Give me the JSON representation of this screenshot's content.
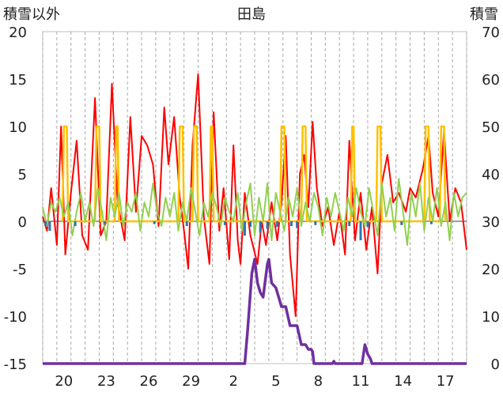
{
  "chart_data": {
    "type": "line",
    "title": "田島",
    "left_axis_label": "積雪以外",
    "right_axis_label": "積雪",
    "left_ylim": [
      -15,
      20
    ],
    "left_yticks": [
      -15,
      -10,
      -5,
      0,
      5,
      10,
      15,
      20
    ],
    "right_ylim": [
      0,
      70
    ],
    "right_yticks": [
      0,
      10,
      20,
      30,
      40,
      50,
      60,
      70
    ],
    "x_range_days": [
      0,
      30
    ],
    "x_tick_labels": [
      {
        "day": 1,
        "label": "20"
      },
      {
        "day": 4,
        "label": "23"
      },
      {
        "day": 7,
        "label": "26"
      },
      {
        "day": 10,
        "label": "29"
      },
      {
        "day": 13,
        "label": "2"
      },
      {
        "day": 16,
        "label": "5"
      },
      {
        "day": 19,
        "label": "8"
      },
      {
        "day": 22,
        "label": "11"
      },
      {
        "day": 25,
        "label": "14"
      },
      {
        "day": 28,
        "label": "17"
      }
    ],
    "grid": "vertical dashed daily lines",
    "colors": {
      "temperature": "#ff0000",
      "sunshine": "#ffc000",
      "wind": "#92d050",
      "precipitation": "#2e75b6",
      "snow_depth": "#7030a0",
      "zero_line": "#7f7f7f",
      "grid": "#aaaaaa"
    },
    "series": [
      {
        "key": "temperature",
        "color": "#ff0000",
        "points": [
          [
            0.0,
            0.5
          ],
          [
            0.3,
            -1.0
          ],
          [
            0.6,
            3.5
          ],
          [
            1.0,
            -2.5
          ],
          [
            1.3,
            10.0
          ],
          [
            1.6,
            -3.5
          ],
          [
            2.0,
            3.0
          ],
          [
            2.4,
            8.5
          ],
          [
            2.8,
            -1.5
          ],
          [
            3.2,
            -3.0
          ],
          [
            3.7,
            13.0
          ],
          [
            4.1,
            -1.5
          ],
          [
            4.5,
            0.0
          ],
          [
            4.9,
            14.5
          ],
          [
            5.3,
            2.0
          ],
          [
            5.8,
            -2.0
          ],
          [
            6.2,
            11.0
          ],
          [
            6.6,
            1.0
          ],
          [
            7.0,
            9.0
          ],
          [
            7.4,
            8.0
          ],
          [
            7.8,
            6.0
          ],
          [
            8.2,
            -0.5
          ],
          [
            8.6,
            12.0
          ],
          [
            8.9,
            6.0
          ],
          [
            9.3,
            11.0
          ],
          [
            9.7,
            2.5
          ],
          [
            10.0,
            -1.0
          ],
          [
            10.3,
            -5.0
          ],
          [
            10.6,
            8.0
          ],
          [
            11.0,
            15.5
          ],
          [
            11.4,
            0.5
          ],
          [
            11.8,
            -4.5
          ],
          [
            12.1,
            11.5
          ],
          [
            12.5,
            -1.0
          ],
          [
            12.8,
            3.5
          ],
          [
            13.2,
            -4.0
          ],
          [
            13.5,
            8.0
          ],
          [
            13.8,
            -2.0
          ],
          [
            14.0,
            -4.5
          ],
          [
            14.3,
            3.0
          ],
          [
            14.7,
            -1.5
          ],
          [
            15.2,
            -4.5
          ],
          [
            15.5,
            0.0
          ],
          [
            15.8,
            -2.5
          ],
          [
            16.2,
            2.0
          ],
          [
            16.6,
            -2.0
          ],
          [
            16.9,
            2.0
          ],
          [
            17.2,
            9.0
          ],
          [
            17.5,
            -3.5
          ],
          [
            17.9,
            -10.0
          ],
          [
            18.2,
            5.0
          ],
          [
            18.5,
            7.0
          ],
          [
            18.8,
            1.5
          ],
          [
            19.1,
            10.5
          ],
          [
            19.4,
            3.5
          ],
          [
            19.8,
            -0.5
          ],
          [
            20.2,
            1.5
          ],
          [
            20.6,
            -2.5
          ],
          [
            21.0,
            1.0
          ],
          [
            21.4,
            -3.5
          ],
          [
            21.7,
            8.5
          ],
          [
            22.1,
            -2.0
          ],
          [
            22.5,
            3.0
          ],
          [
            22.9,
            -3.0
          ],
          [
            23.3,
            1.5
          ],
          [
            23.7,
            -5.5
          ],
          [
            24.0,
            4.0
          ],
          [
            24.4,
            7.0
          ],
          [
            24.8,
            2.0
          ],
          [
            25.2,
            3.0
          ],
          [
            25.7,
            1.0
          ],
          [
            26.0,
            3.5
          ],
          [
            26.4,
            2.5
          ],
          [
            26.9,
            5.5
          ],
          [
            27.3,
            9.0
          ],
          [
            27.6,
            3.0
          ],
          [
            28.0,
            0.5
          ],
          [
            28.4,
            9.5
          ],
          [
            28.8,
            0.0
          ],
          [
            29.2,
            3.5
          ],
          [
            29.6,
            2.0
          ],
          [
            30.0,
            -3.0
          ]
        ]
      },
      {
        "key": "sunshine",
        "color": "#ffc000",
        "points": [
          [
            1.4,
            0
          ],
          [
            1.5,
            10
          ],
          [
            1.7,
            10
          ],
          [
            1.8,
            0
          ],
          [
            3.7,
            0
          ],
          [
            3.8,
            10
          ],
          [
            4.0,
            10
          ],
          [
            4.1,
            0
          ],
          [
            5.1,
            0
          ],
          [
            5.2,
            10
          ],
          [
            5.3,
            10
          ],
          [
            5.4,
            0
          ],
          [
            9.6,
            0
          ],
          [
            9.7,
            10
          ],
          [
            9.9,
            10
          ],
          [
            10.0,
            0
          ],
          [
            10.6,
            0
          ],
          [
            10.7,
            10
          ],
          [
            10.9,
            10
          ],
          [
            11.0,
            0
          ],
          [
            11.8,
            0
          ],
          [
            11.9,
            10
          ],
          [
            12.0,
            10
          ],
          [
            12.1,
            0
          ],
          [
            16.8,
            0
          ],
          [
            16.9,
            10
          ],
          [
            17.1,
            10
          ],
          [
            17.2,
            0
          ],
          [
            18.3,
            0
          ],
          [
            18.4,
            10
          ],
          [
            18.6,
            10
          ],
          [
            18.7,
            0
          ],
          [
            21.8,
            0
          ],
          [
            21.9,
            10
          ],
          [
            22.0,
            10
          ],
          [
            22.1,
            0
          ],
          [
            23.6,
            0
          ],
          [
            23.7,
            10
          ],
          [
            23.9,
            10
          ],
          [
            24.0,
            0
          ],
          [
            27.0,
            0
          ],
          [
            27.1,
            10
          ],
          [
            27.3,
            10
          ],
          [
            27.4,
            0
          ],
          [
            28.1,
            0
          ],
          [
            28.2,
            10
          ],
          [
            28.4,
            10
          ],
          [
            28.5,
            0
          ]
        ]
      },
      {
        "key": "wind",
        "color": "#92d050",
        "points": [
          [
            0.0,
            1.5
          ],
          [
            0.3,
            -0.5
          ],
          [
            0.6,
            2.0
          ],
          [
            0.9,
            1.0
          ],
          [
            1.2,
            2.5
          ],
          [
            1.5,
            0.5
          ],
          [
            1.8,
            2.0
          ],
          [
            2.1,
            -1.5
          ],
          [
            2.4,
            1.0
          ],
          [
            2.7,
            3.0
          ],
          [
            3.0,
            0.0
          ],
          [
            3.3,
            2.0
          ],
          [
            3.6,
            -0.5
          ],
          [
            3.9,
            3.5
          ],
          [
            4.2,
            1.0
          ],
          [
            4.5,
            -2.0
          ],
          [
            4.8,
            2.5
          ],
          [
            5.1,
            0.5
          ],
          [
            5.4,
            3.0
          ],
          [
            5.7,
            -0.5
          ],
          [
            6.0,
            2.0
          ],
          [
            6.3,
            1.0
          ],
          [
            6.6,
            3.0
          ],
          [
            6.9,
            -1.0
          ],
          [
            7.2,
            2.0
          ],
          [
            7.5,
            0.5
          ],
          [
            7.8,
            4.0
          ],
          [
            8.1,
            1.0
          ],
          [
            8.4,
            -0.5
          ],
          [
            8.7,
            2.5
          ],
          [
            9.0,
            0.5
          ],
          [
            9.3,
            3.0
          ],
          [
            9.6,
            -1.0
          ],
          [
            9.9,
            2.0
          ],
          [
            10.2,
            0.0
          ],
          [
            10.5,
            3.5
          ],
          [
            10.8,
            1.0
          ],
          [
            11.1,
            -1.5
          ],
          [
            11.4,
            2.0
          ],
          [
            11.7,
            0.5
          ],
          [
            12.0,
            3.0
          ],
          [
            12.3,
            1.5
          ],
          [
            12.6,
            -0.5
          ],
          [
            12.9,
            2.5
          ],
          [
            13.2,
            1.0
          ],
          [
            13.5,
            0.0
          ],
          [
            13.8,
            3.0
          ],
          [
            14.1,
            -1.0
          ],
          [
            14.4,
            2.0
          ],
          [
            14.7,
            4.0
          ],
          [
            15.0,
            -1.5
          ],
          [
            15.3,
            2.5
          ],
          [
            15.6,
            0.0
          ],
          [
            15.9,
            4.0
          ],
          [
            16.2,
            -2.0
          ],
          [
            16.5,
            3.0
          ],
          [
            16.8,
            1.0
          ],
          [
            17.1,
            -1.0
          ],
          [
            17.4,
            2.5
          ],
          [
            17.7,
            0.5
          ],
          [
            18.0,
            3.5
          ],
          [
            18.3,
            -0.5
          ],
          [
            18.6,
            2.0
          ],
          [
            18.9,
            0.0
          ],
          [
            19.2,
            3.0
          ],
          [
            19.5,
            1.5
          ],
          [
            19.8,
            -1.5
          ],
          [
            20.1,
            2.5
          ],
          [
            20.4,
            0.5
          ],
          [
            20.7,
            3.0
          ],
          [
            21.0,
            1.0
          ],
          [
            21.3,
            -1.0
          ],
          [
            21.6,
            2.5
          ],
          [
            21.9,
            0.5
          ],
          [
            22.2,
            3.5
          ],
          [
            22.5,
            1.0
          ],
          [
            22.8,
            -0.5
          ],
          [
            23.1,
            3.5
          ],
          [
            23.4,
            1.0
          ],
          [
            23.7,
            -1.5
          ],
          [
            24.0,
            4.0
          ],
          [
            24.3,
            0.5
          ],
          [
            24.6,
            2.5
          ],
          [
            24.9,
            -1.0
          ],
          [
            25.2,
            4.5
          ],
          [
            25.5,
            1.0
          ],
          [
            25.8,
            -2.5
          ],
          [
            26.1,
            3.0
          ],
          [
            26.4,
            0.5
          ],
          [
            26.7,
            4.0
          ],
          [
            27.0,
            -1.0
          ],
          [
            27.3,
            2.5
          ],
          [
            27.6,
            0.0
          ],
          [
            27.9,
            3.5
          ],
          [
            28.2,
            -0.5
          ],
          [
            28.5,
            2.0
          ],
          [
            28.8,
            -2.0
          ],
          [
            29.1,
            3.0
          ],
          [
            29.4,
            0.5
          ],
          [
            29.7,
            2.5
          ],
          [
            30.0,
            3.0
          ]
        ]
      },
      {
        "key": "precipitation",
        "color": "#2e75b6",
        "bars": [
          [
            0.2,
            -0.5
          ],
          [
            0.5,
            -1.0
          ],
          [
            2.3,
            -0.5
          ],
          [
            4.4,
            -0.3
          ],
          [
            7.9,
            -0.3
          ],
          [
            10.2,
            -0.5
          ],
          [
            12.9,
            -0.4
          ],
          [
            14.3,
            -1.5
          ],
          [
            14.7,
            -0.6
          ],
          [
            15.4,
            -1.2
          ],
          [
            15.9,
            -0.8
          ],
          [
            16.6,
            -0.6
          ],
          [
            17.6,
            -0.5
          ],
          [
            18.0,
            -0.7
          ],
          [
            19.3,
            -0.4
          ],
          [
            21.7,
            -0.5
          ],
          [
            22.5,
            -2.0
          ],
          [
            23.0,
            -0.6
          ],
          [
            25.4,
            -0.4
          ],
          [
            27.5,
            -0.3
          ]
        ]
      },
      {
        "key": "snow_depth",
        "color": "#7030a0",
        "points": [
          [
            0.0,
            0
          ],
          [
            14.3,
            0
          ],
          [
            14.5,
            7
          ],
          [
            14.8,
            19
          ],
          [
            15.0,
            22
          ],
          [
            15.2,
            17
          ],
          [
            15.4,
            15
          ],
          [
            15.6,
            14
          ],
          [
            15.9,
            21
          ],
          [
            16.0,
            22
          ],
          [
            16.2,
            17
          ],
          [
            16.5,
            16
          ],
          [
            16.7,
            14
          ],
          [
            16.9,
            12
          ],
          [
            17.2,
            12
          ],
          [
            17.5,
            8
          ],
          [
            17.8,
            8
          ],
          [
            18.0,
            8
          ],
          [
            18.3,
            4
          ],
          [
            18.6,
            4
          ],
          [
            18.8,
            3
          ],
          [
            19.0,
            3
          ],
          [
            19.1,
            2.5
          ],
          [
            19.2,
            0
          ],
          [
            20.5,
            0
          ],
          [
            20.6,
            0.5
          ],
          [
            20.7,
            0
          ],
          [
            22.6,
            0
          ],
          [
            22.8,
            4
          ],
          [
            23.0,
            2
          ],
          [
            23.2,
            1
          ],
          [
            23.3,
            0
          ],
          [
            30.0,
            0
          ]
        ]
      }
    ]
  }
}
